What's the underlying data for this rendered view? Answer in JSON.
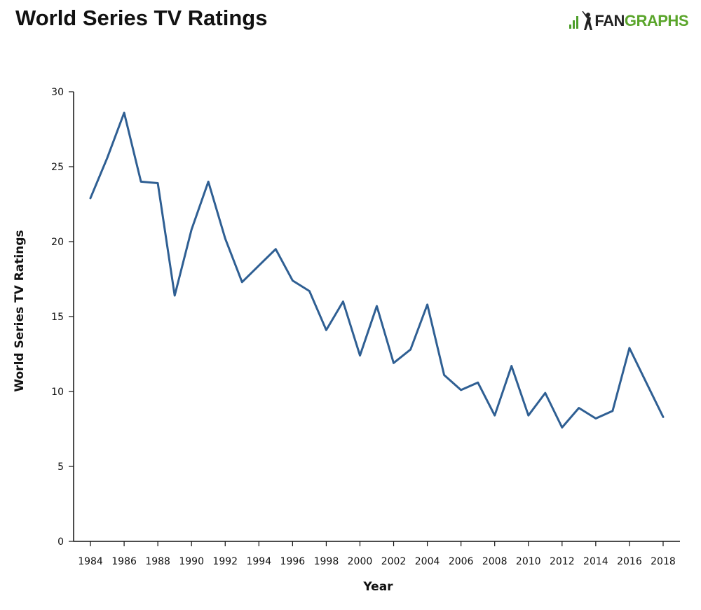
{
  "header": {
    "title": "World Series TV Ratings",
    "brand_fan": "FAN",
    "brand_graphs": "GRAPHS"
  },
  "colors": {
    "line": "#2f5f93",
    "axis": "#111111",
    "brand_green": "#5aa52b"
  },
  "chart_data": {
    "type": "line",
    "title": "World Series TV Ratings",
    "xlabel": "Year",
    "ylabel": "World Series TV Ratings",
    "xlim": [
      1983,
      2019
    ],
    "ylim": [
      0,
      30
    ],
    "grid": false,
    "xticks": [
      1984,
      1986,
      1988,
      1990,
      1992,
      1994,
      1996,
      1998,
      2000,
      2002,
      2004,
      2006,
      2008,
      2010,
      2012,
      2014,
      2016,
      2018
    ],
    "yticks": [
      0,
      5,
      10,
      15,
      20,
      25,
      30
    ],
    "x": [
      1984,
      1985,
      1986,
      1987,
      1988,
      1989,
      1990,
      1991,
      1992,
      1993,
      1994,
      1995,
      1996,
      1997,
      1998,
      1999,
      2000,
      2001,
      2002,
      2003,
      2004,
      2005,
      2006,
      2007,
      2008,
      2009,
      2010,
      2011,
      2012,
      2013,
      2014,
      2015,
      2016,
      2017,
      2018
    ],
    "series": [
      {
        "values": [
          22.9,
          25.6,
          28.6,
          24.0,
          23.9,
          16.4,
          20.8,
          24.0,
          20.2,
          17.3,
          18.4,
          19.5,
          17.4,
          16.7,
          14.1,
          16.0,
          12.4,
          15.7,
          11.9,
          12.8,
          15.8,
          11.1,
          10.1,
          10.6,
          8.4,
          11.7,
          8.4,
          9.9,
          7.6,
          8.9,
          8.2,
          8.7,
          12.9,
          10.6,
          8.3
        ]
      }
    ]
  }
}
